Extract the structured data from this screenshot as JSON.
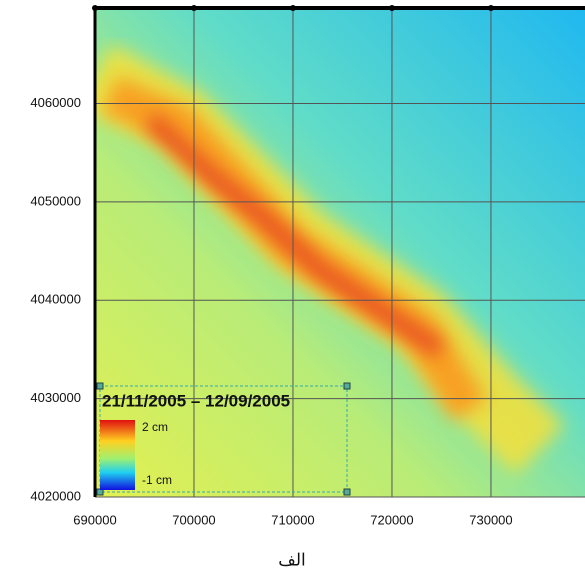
{
  "map": {
    "xlim": [
      690000,
      739500
    ],
    "ylim": [
      4020000,
      4069700
    ],
    "xticks": [
      690000,
      700000,
      710000,
      720000,
      730000
    ],
    "yticks": [
      4020000,
      4030000,
      4040000,
      4050000,
      4060000
    ]
  },
  "legend": {
    "title": "21/11/2005 – 12/09/2005",
    "max_label": "2 cm",
    "min_label": "-1 cm"
  },
  "caption": "الف"
}
